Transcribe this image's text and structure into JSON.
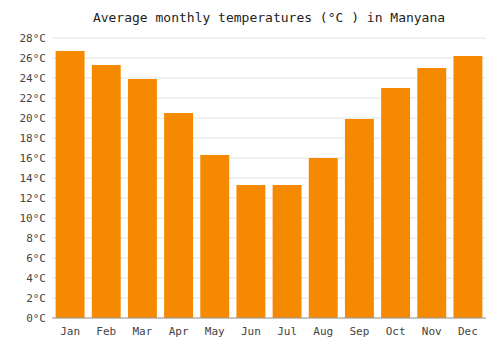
{
  "chart_data": {
    "type": "bar",
    "title": "Average monthly temperatures (°C ) in Manyana",
    "categories": [
      "Jan",
      "Feb",
      "Mar",
      "Apr",
      "May",
      "Jun",
      "Jul",
      "Aug",
      "Sep",
      "Oct",
      "Nov",
      "Dec"
    ],
    "values": [
      26.7,
      25.3,
      23.9,
      20.5,
      16.3,
      13.3,
      13.3,
      16.0,
      19.9,
      23.0,
      25.0,
      26.2
    ],
    "color": "#F58A00",
    "ylim": [
      0,
      28
    ],
    "yticks": [
      {
        "value": 0,
        "label": "0°C"
      },
      {
        "value": 2,
        "label": "2°C"
      },
      {
        "value": 4,
        "label": "4°C"
      },
      {
        "value": 6,
        "label": "6°C"
      },
      {
        "value": 8,
        "label": "8°C"
      },
      {
        "value": 10,
        "label": "10°C"
      },
      {
        "value": 12,
        "label": "12°C"
      },
      {
        "value": 14,
        "label": "14°C"
      },
      {
        "value": 16,
        "label": "16°C"
      },
      {
        "value": 18,
        "label": "18°C"
      },
      {
        "value": 20,
        "label": "20°C"
      },
      {
        "value": 22,
        "label": "22°C"
      },
      {
        "value": 24,
        "label": "24°C"
      },
      {
        "value": 26,
        "label": "26°C"
      },
      {
        "value": 28,
        "label": "28°C"
      }
    ],
    "grid": true
  }
}
